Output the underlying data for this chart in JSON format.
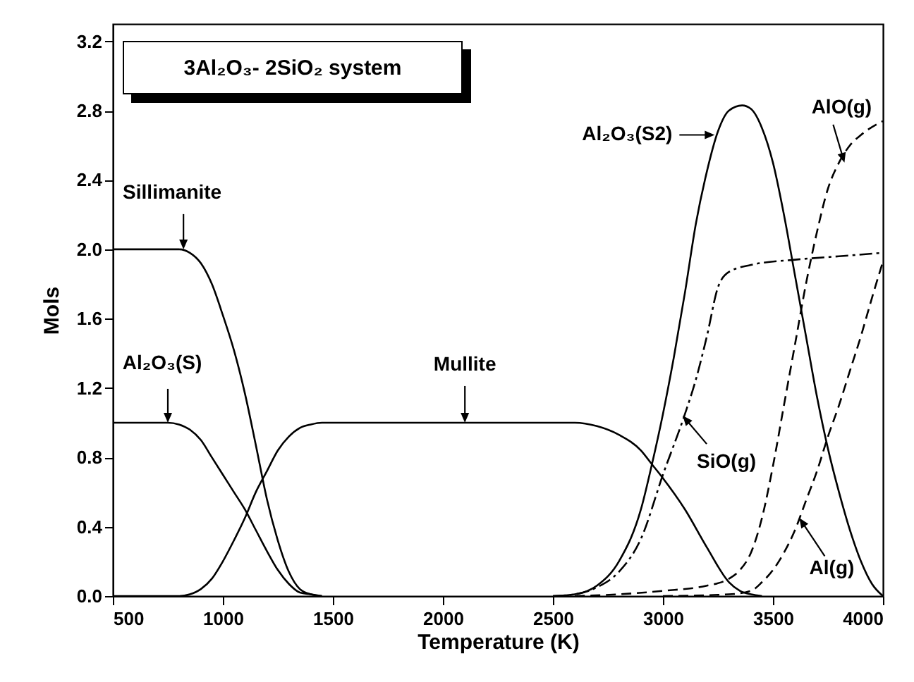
{
  "chart_data": {
    "type": "line",
    "title": "3Al₂O₃- 2SiO₂ system",
    "xlabel": "Temperature (K)",
    "ylabel": "Mols",
    "xlim": [
      500,
      4000
    ],
    "xticks": [
      500,
      1000,
      1500,
      2000,
      2500,
      3000,
      3500,
      4000
    ],
    "ylim": [
      0,
      3.3
    ],
    "yticks": [
      {
        "value": 0,
        "label": "0.0"
      },
      {
        "value": 0.4,
        "label": "0.4"
      },
      {
        "value": 0.8,
        "label": "0.8"
      },
      {
        "value": 1.2,
        "label": "1.2"
      },
      {
        "value": 1.6,
        "label": "1.6"
      },
      {
        "value": 2,
        "label": "2.0"
      },
      {
        "value": 2.4,
        "label": "2.4"
      },
      {
        "value": 2.8,
        "label": "2.8"
      },
      {
        "value": 3.2,
        "label": "3.2"
      }
    ],
    "grid": false,
    "marker": "none",
    "series": [
      {
        "color": "#000000",
        "line_style": "solid",
        "x": [
          500,
          800,
          850,
          900,
          950,
          1000,
          1050,
          1100,
          1150,
          1200,
          1250,
          1300,
          1350,
          1400,
          1450
        ],
        "values": [
          2,
          2,
          1.98,
          1.92,
          1.8,
          1.62,
          1.42,
          1.17,
          0.87,
          0.56,
          0.32,
          0.14,
          0.04,
          0.01,
          0
        ]
      },
      {
        "color": "#000000",
        "line_style": "solid",
        "x": [
          500,
          750,
          800,
          850,
          900,
          950,
          1000,
          1050,
          1100,
          1150,
          1200,
          1250,
          1300,
          1350,
          1400,
          1450
        ],
        "values": [
          1,
          1,
          0.99,
          0.96,
          0.9,
          0.8,
          0.7,
          0.6,
          0.5,
          0.38,
          0.26,
          0.15,
          0.07,
          0.02,
          0.01,
          0
        ]
      },
      {
        "color": "#000000",
        "line_style": "solid",
        "x": [
          500,
          800,
          850,
          900,
          950,
          1000,
          1050,
          1100,
          1150,
          1200,
          1250,
          1300,
          1350,
          1400,
          1450,
          2500,
          2600,
          2700,
          2800,
          2900,
          2950,
          3000,
          3100,
          3200,
          3300,
          3350,
          3400,
          3450
        ],
        "values": [
          0,
          0,
          0.01,
          0.04,
          0.1,
          0.2,
          0.32,
          0.45,
          0.6,
          0.72,
          0.84,
          0.92,
          0.97,
          0.99,
          1,
          1,
          1,
          0.98,
          0.93,
          0.84,
          0.76,
          0.68,
          0.5,
          0.28,
          0.08,
          0.03,
          0.01,
          0
        ]
      },
      {
        "color": "#000000",
        "line_style": "solid",
        "x": [
          2500,
          2600,
          2700,
          2800,
          2900,
          2950,
          3000,
          3050,
          3100,
          3150,
          3200,
          3250,
          3300,
          3360,
          3400,
          3450,
          3500,
          3550,
          3600,
          3650,
          3700,
          3750,
          3800,
          3850,
          3900,
          3950,
          4000
        ],
        "values": [
          0,
          0.01,
          0.06,
          0.2,
          0.5,
          0.76,
          1.05,
          1.38,
          1.75,
          2.15,
          2.45,
          2.68,
          2.8,
          2.83,
          2.81,
          2.7,
          2.5,
          2.2,
          1.85,
          1.5,
          1.15,
          0.85,
          0.6,
          0.38,
          0.2,
          0.07,
          0
        ]
      },
      {
        "color": "#000000",
        "line_style": "dashdot",
        "x": [
          2500,
          2600,
          2700,
          2800,
          2900,
          3000,
          3100,
          3150,
          3200,
          3250,
          3300,
          3400,
          3600,
          3800,
          4000
        ],
        "values": [
          0,
          0.01,
          0.05,
          0.14,
          0.33,
          0.7,
          1.05,
          1.25,
          1.5,
          1.78,
          1.87,
          1.91,
          1.94,
          1.96,
          1.98
        ]
      },
      {
        "color": "#000000",
        "line_style": "dashed",
        "x": [
          2600,
          2800,
          3000,
          3200,
          3300,
          3350,
          3400,
          3450,
          3500,
          3550,
          3600,
          3650,
          3700,
          3750,
          3800,
          3850,
          3900,
          4000
        ],
        "values": [
          0,
          0.01,
          0.03,
          0.06,
          0.1,
          0.15,
          0.25,
          0.45,
          0.75,
          1.1,
          1.45,
          1.8,
          2.1,
          2.35,
          2.5,
          2.6,
          2.66,
          2.74
        ]
      },
      {
        "color": "#000000",
        "line_style": "dashed",
        "x": [
          3000,
          3300,
          3400,
          3450,
          3500,
          3550,
          3600,
          3650,
          3700,
          3750,
          3800,
          3850,
          3900,
          3950,
          4000
        ],
        "values": [
          0,
          0.01,
          0.03,
          0.08,
          0.15,
          0.25,
          0.38,
          0.55,
          0.72,
          0.92,
          1.1,
          1.3,
          1.5,
          1.72,
          1.93
        ]
      }
    ],
    "annotations": [
      {
        "text": "Sillimanite",
        "x": 821,
        "y": 2.0
      },
      {
        "text": "Al₂O₃(S)",
        "x": 750,
        "y": 1.0
      },
      {
        "text": "Mullite",
        "x": 2100,
        "y": 1.0
      },
      {
        "text": "Al₂O₃(S2)",
        "x": 3235,
        "y": 2.66
      },
      {
        "text": "AlO(g)",
        "x": 3825,
        "y": 2.5
      },
      {
        "text": "SiO(g)",
        "x": 3090,
        "y": 1.04
      },
      {
        "text": "Al(g)",
        "x": 3620,
        "y": 0.45
      }
    ]
  }
}
